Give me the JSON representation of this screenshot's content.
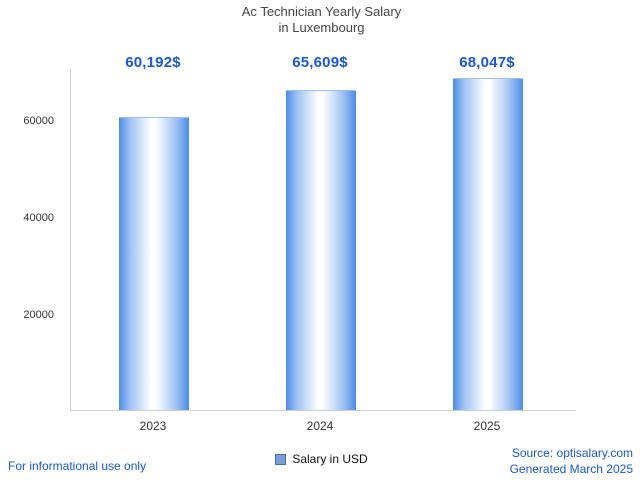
{
  "chart_data": {
    "type": "bar",
    "title": "Ac Technician Yearly Salary",
    "subtitle": "in Luxembourg",
    "categories": [
      "2023",
      "2024",
      "2025"
    ],
    "values": [
      60192,
      65609,
      68047
    ],
    "value_labels": [
      "60,192$",
      "65,609$",
      "68,047$"
    ],
    "series_name": "Salary in USD",
    "yticks": [
      20000,
      40000,
      60000
    ],
    "ylim": [
      0,
      70000
    ],
    "grid": false,
    "legend_position": "bottom",
    "bar_color": "#4d8ce6",
    "accent_text_color": "#1a57d6"
  },
  "footer": {
    "disclaimer": "For informational use only",
    "source": "Source: optisalary.com",
    "generated": "Generated March 2025"
  }
}
